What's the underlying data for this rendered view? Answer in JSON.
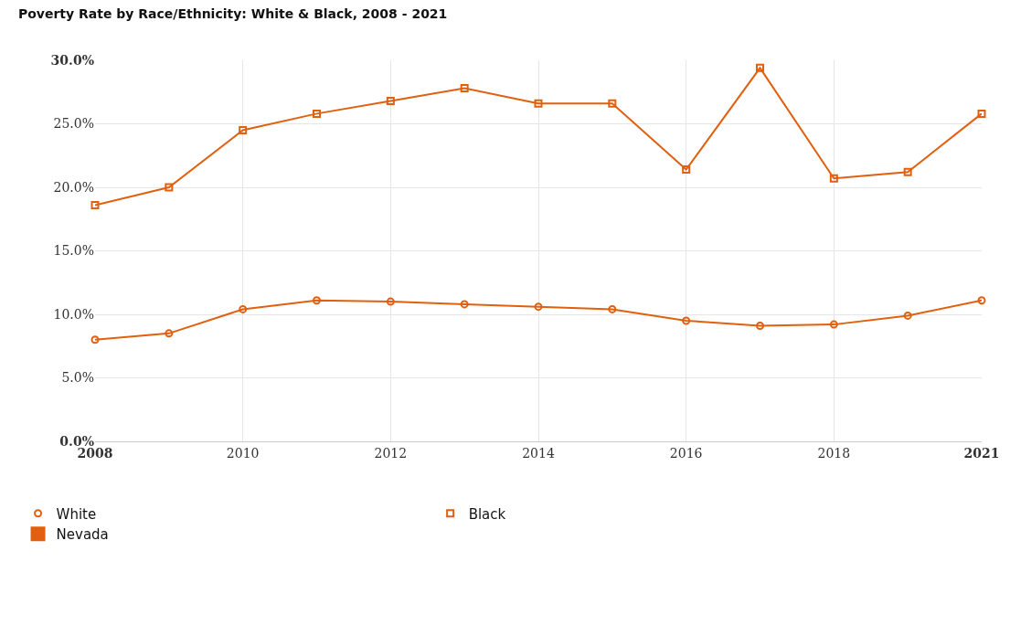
{
  "chart_data": {
    "type": "line",
    "title": "Poverty Rate by Race/Ethnicity: White & Black, 2008 - 2021",
    "categories": [
      "2008",
      null,
      "2010",
      null,
      "2012",
      null,
      "2014",
      null,
      "2016",
      null,
      "2018",
      null,
      "2021"
    ],
    "series": [
      {
        "name": "White",
        "color": "#e0600f",
        "marker": "circle",
        "values": [
          8.0,
          8.5,
          10.4,
          11.1,
          11.0,
          10.8,
          10.6,
          10.4,
          9.5,
          9.1,
          9.2,
          9.9,
          11.1
        ]
      },
      {
        "name": "Black",
        "color": "#e0600f",
        "marker": "square",
        "values": [
          18.6,
          20.0,
          24.5,
          25.8,
          26.8,
          27.8,
          26.6,
          26.6,
          21.4,
          29.4,
          20.7,
          21.2,
          25.8
        ]
      }
    ],
    "legend_title": "Nevada",
    "ylim": [
      0,
      30
    ],
    "yticks": [
      {
        "value": 0,
        "label": "0.0%"
      },
      {
        "value": 5,
        "label": "5.0%"
      },
      {
        "value": 10,
        "label": "10.0%"
      },
      {
        "value": 15,
        "label": "15.0%"
      },
      {
        "value": 20,
        "label": "20.0%"
      },
      {
        "value": 25,
        "label": "25.0%"
      },
      {
        "value": 30,
        "label": "30.0%"
      }
    ],
    "grid": true,
    "legend": "bottom left",
    "line_style": "solid"
  }
}
